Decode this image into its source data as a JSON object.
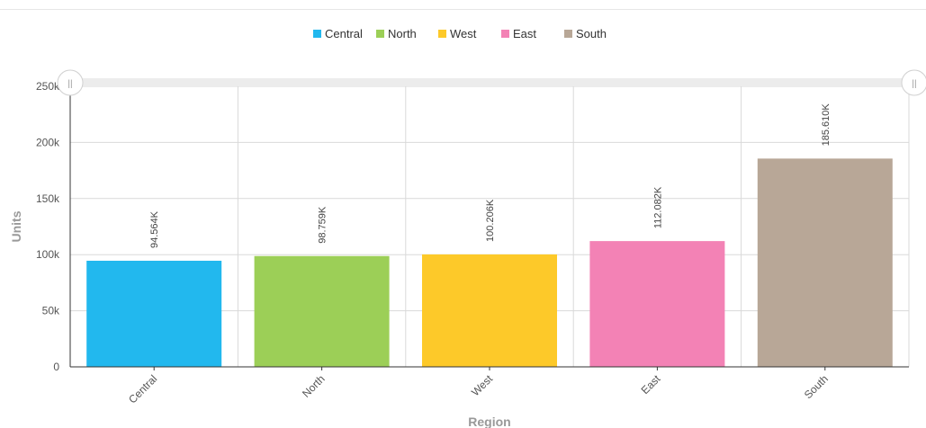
{
  "chart_data": {
    "type": "bar",
    "categories": [
      "Central",
      "North",
      "West",
      "East",
      "South"
    ],
    "values": [
      94564,
      98759,
      100206,
      112082,
      185610
    ],
    "data_labels": [
      "94.564K",
      "98.759K",
      "100.206K",
      "112.082K",
      "185.610K"
    ],
    "colors": [
      "#22b8ee",
      "#9ccf57",
      "#fdc929",
      "#f382b5",
      "#b8a797"
    ],
    "series": [
      {
        "name": "Central",
        "color": "#22b8ee"
      },
      {
        "name": "North",
        "color": "#9ccf57"
      },
      {
        "name": "West",
        "color": "#fdc929"
      },
      {
        "name": "East",
        "color": "#f382b5"
      },
      {
        "name": "South",
        "color": "#b8a797"
      }
    ],
    "xlabel": "Region",
    "ylabel": "Units",
    "ylim": [
      0,
      250000
    ],
    "yticks": [
      0,
      50000,
      100000,
      150000,
      200000,
      250000
    ],
    "ytick_labels": [
      "0",
      "50k",
      "100k",
      "150k",
      "200k",
      "250k"
    ],
    "grid": true,
    "legend_position": "top-center"
  },
  "scrollbar": {
    "left_handle_icon": "grip-icon",
    "right_handle_icon": "grip-icon",
    "handle_glyph": "||"
  }
}
